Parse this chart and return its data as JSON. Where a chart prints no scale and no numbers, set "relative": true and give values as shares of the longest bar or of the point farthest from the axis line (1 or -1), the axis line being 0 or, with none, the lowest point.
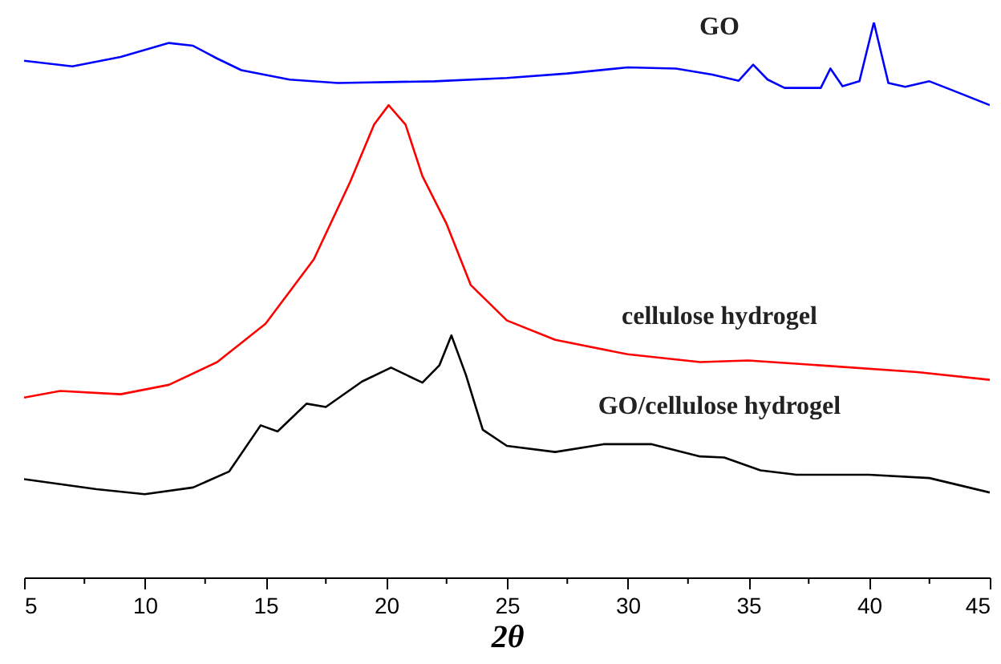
{
  "chart_data": {
    "type": "line",
    "relative": true,
    "xlabel": "2θ",
    "xlim": [
      5,
      45
    ],
    "xticks": [
      5,
      {
        "value": 7.5,
        "label": null
      },
      10,
      {
        "value": 12.5,
        "label": null
      },
      15,
      {
        "value": 17.5,
        "label": null
      },
      20,
      {
        "value": 22.5,
        "label": null
      },
      25,
      {
        "value": 27.5,
        "label": null
      },
      30,
      {
        "value": 32.5,
        "label": null
      },
      35,
      {
        "value": 37.5,
        "label": null
      },
      40,
      {
        "value": 42.5,
        "label": null
      },
      45
    ],
    "grid": false,
    "marker": "none",
    "line_style": "solid",
    "series": [
      {
        "name": "GO",
        "color": "#0000ff",
        "x": [
          5,
          7,
          9,
          11,
          12,
          13,
          14,
          16,
          18,
          22,
          25,
          27.5,
          30,
          32,
          33.5,
          34.6,
          35.2,
          35.8,
          36.5,
          38,
          38.4,
          38.9,
          39.6,
          40.2,
          40.8,
          41.5,
          42.5,
          43.5,
          45
        ],
        "values": [
          0.931,
          0.921,
          0.938,
          0.963,
          0.958,
          0.935,
          0.914,
          0.897,
          0.891,
          0.894,
          0.9,
          0.908,
          0.919,
          0.917,
          0.906,
          0.895,
          0.924,
          0.897,
          0.882,
          0.882,
          0.917,
          0.885,
          0.894,
          1.0,
          0.891,
          0.884,
          0.894,
          0.877,
          0.851
        ]
      },
      {
        "name": "cellulose hydrogel",
        "color": "#ff0000",
        "x": [
          5,
          6.5,
          9,
          11,
          13,
          15,
          17,
          18.5,
          19.5,
          20.1,
          20.8,
          21.5,
          22.5,
          23.5,
          25,
          27,
          30,
          33,
          35,
          38,
          42,
          45
        ],
        "values": [
          0.324,
          0.336,
          0.33,
          0.347,
          0.388,
          0.457,
          0.573,
          0.712,
          0.816,
          0.851,
          0.816,
          0.723,
          0.637,
          0.527,
          0.463,
          0.428,
          0.402,
          0.388,
          0.391,
          0.382,
          0.37,
          0.356
        ]
      },
      {
        "name": "GO/cellulose hydrogel",
        "color": "#000000",
        "x": [
          5,
          8,
          10,
          12,
          13.5,
          14.8,
          15.5,
          16.7,
          17.5,
          19,
          20.2,
          21.5,
          22.2,
          22.7,
          23.3,
          24,
          25,
          27,
          29,
          31,
          33,
          34,
          35.5,
          37,
          40,
          42.5,
          45
        ],
        "values": [
          0.177,
          0.159,
          0.15,
          0.162,
          0.191,
          0.274,
          0.263,
          0.313,
          0.307,
          0.353,
          0.378,
          0.351,
          0.382,
          0.436,
          0.365,
          0.266,
          0.237,
          0.226,
          0.24,
          0.24,
          0.218,
          0.216,
          0.193,
          0.185,
          0.185,
          0.179,
          0.153
        ]
      }
    ]
  }
}
